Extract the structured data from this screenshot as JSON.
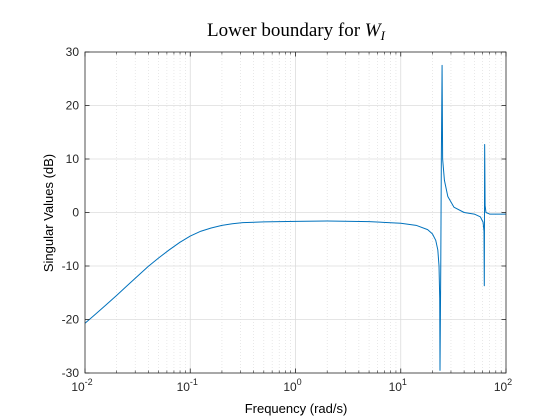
{
  "chart_data": {
    "type": "line",
    "title": "Lower boundary for",
    "title_var": "W",
    "title_sub": "I",
    "xlabel": "Frequency (rad/s)",
    "ylabel": "Singular Values (dB)",
    "xscale": "log",
    "xlim": [
      0.01,
      100
    ],
    "ylim": [
      -30,
      30
    ],
    "grid": true,
    "minor_grid": true,
    "x_ticks": [
      {
        "base": "10",
        "exp": "-2"
      },
      {
        "base": "10",
        "exp": "-1"
      },
      {
        "base": "10",
        "exp": "0"
      },
      {
        "base": "10",
        "exp": "1"
      },
      {
        "base": "10",
        "exp": "2"
      }
    ],
    "y_ticks": [
      "-30",
      "-20",
      "-10",
      "0",
      "10",
      "20",
      "30"
    ],
    "series_color": "#0072BD",
    "series": [
      {
        "name": "singular value",
        "x": [
          0.01,
          0.0126,
          0.0158,
          0.02,
          0.0251,
          0.0316,
          0.0398,
          0.05,
          0.063,
          0.0794,
          0.1,
          0.126,
          0.158,
          0.2,
          0.251,
          0.316,
          0.5,
          1,
          2,
          5,
          10,
          14,
          18,
          20,
          21.5,
          22.5,
          23.1,
          23.45,
          23.6,
          24.0,
          24.3,
          24.7,
          25.0,
          26,
          28,
          32,
          40,
          50,
          57,
          60.5,
          61.8,
          62.2,
          62.7,
          63.3,
          64.5,
          70,
          80,
          100
        ],
        "y": [
          -20.7,
          -19.0,
          -17.3,
          -15.5,
          -13.7,
          -11.9,
          -10.1,
          -8.5,
          -7.0,
          -5.6,
          -4.4,
          -3.5,
          -2.9,
          -2.4,
          -2.1,
          -1.9,
          -1.75,
          -1.65,
          -1.6,
          -1.7,
          -2.0,
          -2.4,
          -3.2,
          -4.0,
          -5.2,
          -7.0,
          -10.0,
          -16.0,
          -29.5,
          -10.0,
          10.0,
          27.5,
          10.0,
          6.0,
          3.0,
          1.0,
          0.0,
          -0.3,
          -0.8,
          -1.8,
          -3.5,
          -13.7,
          12.7,
          1.3,
          0.0,
          -0.3,
          -0.3,
          -0.3
        ]
      }
    ]
  }
}
